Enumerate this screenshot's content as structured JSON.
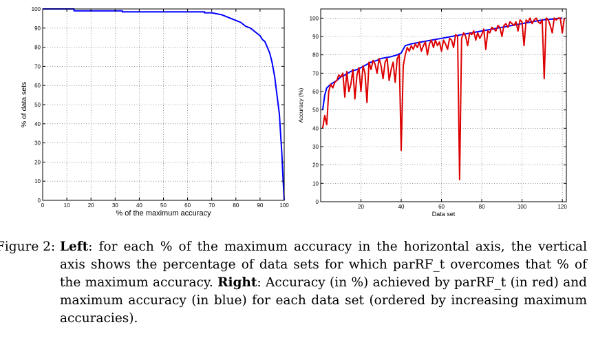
{
  "chart_data": [
    {
      "type": "line",
      "xlabel": "% of the maximum accuracy",
      "ylabel": "% of data sets",
      "xlim": [
        0,
        100
      ],
      "ylim": [
        0,
        100
      ],
      "xticks": [
        0,
        10,
        20,
        30,
        40,
        50,
        60,
        70,
        80,
        90,
        100
      ],
      "yticks": [
        0,
        10,
        20,
        30,
        40,
        50,
        60,
        70,
        80,
        90,
        100
      ],
      "grid": true,
      "series": [
        {
          "color": "#0000ff",
          "x": [
            0,
            13,
            13,
            33,
            33,
            67,
            67,
            70,
            74,
            76,
            78,
            80,
            82,
            84,
            86,
            88,
            90,
            91,
            92,
            93,
            94,
            95,
            96,
            97,
            98,
            98.5,
            99,
            99.5,
            100
          ],
          "y": [
            100,
            100,
            99,
            99,
            98.5,
            98.5,
            98,
            98,
            97,
            96,
            95,
            94,
            93,
            91,
            90,
            88,
            86,
            84,
            83,
            80,
            77,
            72,
            65,
            55,
            45,
            35,
            25,
            12,
            0
          ]
        }
      ]
    },
    {
      "type": "line",
      "xlabel": "Data set",
      "ylabel": "Accuracy (%)",
      "xlim": [
        0,
        122
      ],
      "ylim": [
        0,
        105
      ],
      "xticks": [
        20,
        40,
        60,
        80,
        100,
        120
      ],
      "yticks": [
        0,
        10,
        20,
        30,
        40,
        50,
        60,
        70,
        80,
        90,
        100
      ],
      "grid": true,
      "series": [
        {
          "color": "#0000ff",
          "x": [
            1,
            2,
            3,
            5,
            8,
            10,
            12,
            15,
            18,
            20,
            25,
            28,
            30,
            35,
            38,
            40,
            42,
            45,
            50,
            55,
            60,
            65,
            70,
            75,
            80,
            85,
            90,
            95,
            100,
            105,
            110,
            115,
            120
          ],
          "y": [
            50,
            58,
            62,
            64,
            66,
            68,
            69,
            71,
            72,
            73,
            76,
            77,
            78,
            79,
            80,
            81,
            85,
            86,
            87,
            88,
            89,
            90,
            91,
            92,
            93,
            94,
            95,
            96,
            97,
            98,
            99,
            99.5,
            100
          ]
        },
        {
          "color": "#dd0000",
          "x": [
            1,
            2,
            3,
            4,
            5,
            6,
            7,
            8,
            9,
            10,
            11,
            12,
            13,
            14,
            15,
            16,
            17,
            18,
            19,
            20,
            21,
            22,
            23,
            24,
            25,
            26,
            27,
            28,
            29,
            30,
            31,
            32,
            33,
            34,
            35,
            36,
            37,
            38,
            39,
            40,
            41,
            42,
            43,
            44,
            45,
            46,
            47,
            48,
            49,
            50,
            51,
            52,
            53,
            54,
            55,
            56,
            57,
            58,
            59,
            60,
            61,
            62,
            63,
            64,
            65,
            66,
            67,
            68,
            69,
            70,
            71,
            72,
            73,
            74,
            75,
            76,
            77,
            78,
            79,
            80,
            81,
            82,
            83,
            84,
            85,
            86,
            87,
            88,
            89,
            90,
            91,
            92,
            93,
            94,
            95,
            96,
            97,
            98,
            99,
            100,
            101,
            102,
            103,
            104,
            105,
            106,
            107,
            108,
            109,
            110,
            111,
            112,
            113,
            114,
            115,
            116,
            117,
            118,
            119,
            120,
            121
          ],
          "y": [
            40,
            47,
            42,
            60,
            64,
            62,
            65,
            66,
            69,
            68,
            70,
            57,
            71,
            60,
            64,
            72,
            56,
            69,
            73,
            60,
            74,
            70,
            54,
            76,
            72,
            77,
            75,
            70,
            78,
            74,
            67,
            76,
            78,
            66,
            72,
            76,
            65,
            78,
            80,
            28,
            74,
            80,
            84,
            82,
            85,
            83,
            86,
            84,
            87,
            82,
            85,
            87,
            80,
            86,
            88,
            84,
            88,
            85,
            87,
            82,
            88,
            86,
            83,
            89,
            88,
            84,
            91,
            90,
            12,
            89,
            92,
            90,
            85,
            92,
            91,
            93,
            88,
            92,
            89,
            91,
            94,
            83,
            93,
            92,
            95,
            94,
            93,
            96,
            95,
            90,
            96,
            97,
            95,
            98,
            97,
            96,
            98,
            93,
            99,
            98,
            85,
            99,
            98,
            100,
            97,
            99,
            100,
            98,
            97,
            99,
            67,
            100,
            99,
            96,
            92,
            100,
            99,
            100,
            100,
            92,
            100
          ]
        }
      ]
    }
  ],
  "caption": {
    "label": "Figure 2:",
    "segments": [
      {
        "text": "Left",
        "bold": true
      },
      {
        "text": ":  for each % of the maximum accuracy in the horizontal axis, the vertical axis shows the percentage of data sets for which parRF_t overcomes that % of the maximum accuracy. ",
        "bold": false
      },
      {
        "text": "Right",
        "bold": true
      },
      {
        "text": ": Accuracy (in %) achieved by parRF_t (in red) and maximum accuracy (in blue) for each data set (ordered by increasing maximum accuracies).",
        "bold": false
      }
    ]
  }
}
